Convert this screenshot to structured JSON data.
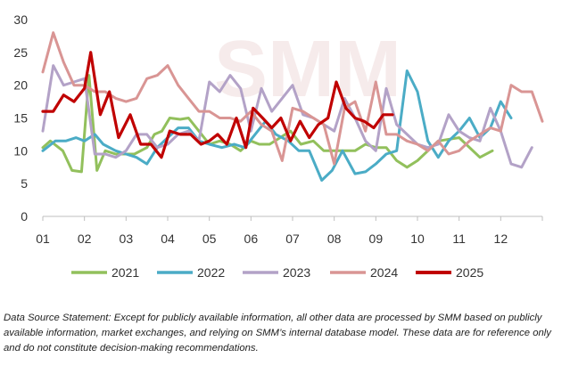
{
  "chart_data": {
    "type": "line",
    "title": "",
    "xlabel": "",
    "ylabel": "",
    "ylim": [
      0,
      30
    ],
    "yticks": [
      0,
      5,
      10,
      15,
      20,
      25,
      30
    ],
    "xticks": [
      "01",
      "02",
      "03",
      "04",
      "05",
      "06",
      "07",
      "08",
      "09",
      "10",
      "11",
      "12"
    ],
    "xlim": [
      1,
      13
    ],
    "grid": false,
    "legend_position": "bottom",
    "series": [
      {
        "name": "2021",
        "color": "#92c05c",
        "x": [
          1.0,
          1.18,
          1.48,
          1.7,
          1.93,
          2.11,
          2.3,
          2.5,
          2.75,
          3.2,
          3.5,
          3.68,
          3.86,
          4.05,
          4.3,
          4.5,
          4.75,
          5.0,
          5.25,
          5.5,
          5.75,
          6.0,
          6.2,
          6.45,
          6.7,
          6.95,
          7.2,
          7.5,
          7.75,
          8.0,
          8.5,
          8.75,
          9.0,
          9.25,
          9.5,
          9.75,
          10.0,
          10.5,
          11.0,
          11.5,
          11.8
        ],
        "y": [
          10.5,
          11.5,
          10,
          7,
          6.8,
          21.5,
          7,
          10,
          9.5,
          9.5,
          10.5,
          12.5,
          13,
          15,
          14.8,
          15,
          13,
          11,
          11.5,
          11,
          10,
          11.5,
          11,
          11,
          12,
          13,
          11,
          11.5,
          10,
          10,
          10,
          11,
          10.5,
          10.5,
          8.5,
          7.5,
          8.5,
          11.5,
          12,
          9,
          10
        ]
      },
      {
        "name": "2022",
        "color": "#4bacc6",
        "x": [
          1.0,
          1.3,
          1.55,
          1.8,
          2.0,
          2.25,
          2.45,
          2.75,
          3.0,
          3.25,
          3.5,
          3.75,
          4.0,
          4.25,
          4.5,
          4.75,
          5.0,
          5.3,
          5.6,
          5.85,
          6.1,
          6.35,
          6.6,
          6.9,
          7.15,
          7.4,
          7.7,
          7.95,
          8.2,
          8.5,
          8.75,
          9.0,
          9.25,
          9.5,
          9.75,
          10.0,
          10.25,
          10.5,
          10.75,
          11.0,
          11.25,
          11.5,
          11.75,
          12.0,
          12.25
        ],
        "y": [
          10,
          11.5,
          11.5,
          12,
          11.5,
          12.5,
          11,
          10,
          9.5,
          9,
          8,
          10.5,
          12,
          13.5,
          13.5,
          11.5,
          11,
          10.5,
          11,
          10.5,
          12.5,
          14.5,
          12.5,
          11.5,
          10,
          10,
          5.5,
          7,
          10,
          6.5,
          6.8,
          8,
          9.5,
          10,
          22.2,
          19,
          11.5,
          9,
          11.5,
          13,
          15,
          12,
          13.5,
          17.5,
          15
        ]
      },
      {
        "name": "2023",
        "color": "#b3a2c7",
        "x": [
          1.0,
          1.25,
          1.5,
          1.75,
          2.0,
          2.25,
          2.5,
          2.75,
          3.0,
          3.25,
          3.5,
          3.75,
          4.0,
          4.25,
          4.5,
          4.75,
          5.0,
          5.25,
          5.5,
          5.75,
          6.0,
          6.25,
          6.5,
          6.75,
          7.0,
          7.25,
          7.5,
          7.75,
          8.0,
          8.25,
          8.5,
          8.75,
          9.0,
          9.25,
          9.5,
          9.75,
          10.0,
          10.25,
          10.5,
          10.75,
          11.0,
          11.25,
          11.5,
          11.75,
          12.0,
          12.25,
          12.5,
          12.75
        ],
        "y": [
          13,
          23,
          20,
          20.5,
          21,
          9.5,
          9.5,
          9,
          10,
          12.5,
          12.5,
          10.5,
          11,
          12.5,
          13,
          11.5,
          20.5,
          19,
          21.5,
          19.5,
          13,
          19.5,
          16,
          18,
          20,
          15.5,
          15,
          14,
          13,
          18,
          15,
          11.5,
          10,
          19.5,
          14,
          12.5,
          11,
          10.5,
          11,
          15.5,
          13,
          12,
          11.5,
          16.5,
          13,
          8,
          7.5,
          10.5
        ]
      },
      {
        "name": "2024",
        "color": "#d99594",
        "x": [
          1.0,
          1.25,
          1.5,
          1.75,
          2.0,
          2.25,
          2.5,
          2.75,
          3.0,
          3.25,
          3.5,
          3.75,
          4.0,
          4.25,
          4.5,
          4.75,
          5.0,
          5.25,
          5.5,
          5.75,
          6.0,
          6.25,
          6.5,
          6.75,
          7.0,
          7.25,
          7.5,
          7.75,
          8.0,
          8.25,
          8.5,
          8.75,
          9.0,
          9.25,
          9.5,
          9.75,
          10.0,
          10.25,
          10.5,
          10.75,
          11.0,
          11.25,
          11.5,
          11.75,
          12.0,
          12.25,
          12.5,
          12.75,
          13.0
        ],
        "y": [
          22,
          28,
          23.5,
          20,
          20,
          19,
          19,
          18,
          17.5,
          18,
          21,
          21.5,
          23,
          20,
          18,
          16,
          16,
          15,
          15,
          14.5,
          16,
          14,
          13,
          8.5,
          16.5,
          16,
          15,
          14,
          8,
          16.5,
          17.5,
          13,
          20.5,
          12.5,
          12.5,
          11.5,
          11,
          10,
          11.5,
          9.5,
          10,
          11.5,
          12.5,
          13.5,
          13,
          20,
          19,
          19,
          14.5
        ]
      },
      {
        "name": "2025",
        "color": "#c00000",
        "x": [
          1.0,
          1.25,
          1.5,
          1.75,
          2.0,
          2.15,
          2.38,
          2.6,
          2.82,
          3.1,
          3.35,
          3.6,
          3.85,
          4.05,
          4.3,
          4.55,
          4.8,
          5.0,
          5.2,
          5.42,
          5.65,
          5.88,
          6.05,
          6.28,
          6.5,
          6.72,
          6.95,
          7.18,
          7.4,
          7.62,
          7.85,
          8.05,
          8.28,
          8.5,
          8.72,
          8.95,
          9.18,
          9.4
        ],
        "y": [
          16,
          16,
          18.5,
          17.5,
          19.5,
          25,
          15.5,
          19,
          12,
          15.5,
          11,
          11,
          9,
          13,
          12.5,
          12.5,
          11,
          11.5,
          12.5,
          11,
          15,
          10.5,
          16.5,
          15,
          13.5,
          15,
          11.5,
          14.5,
          12,
          14,
          15,
          20.5,
          16.5,
          15,
          14.5,
          13.5,
          15.5,
          15.5
        ]
      }
    ]
  },
  "watermark": {
    "text": "SMM",
    "color": "#e8c8c8"
  },
  "source_note": "Data Source Statement: Except for publicly available information, all other data are processed by SMM based on publicly available information, market exchanges, and relying on SMM’s internal database model. These data are for reference only and do not constitute decision-making recommendations."
}
